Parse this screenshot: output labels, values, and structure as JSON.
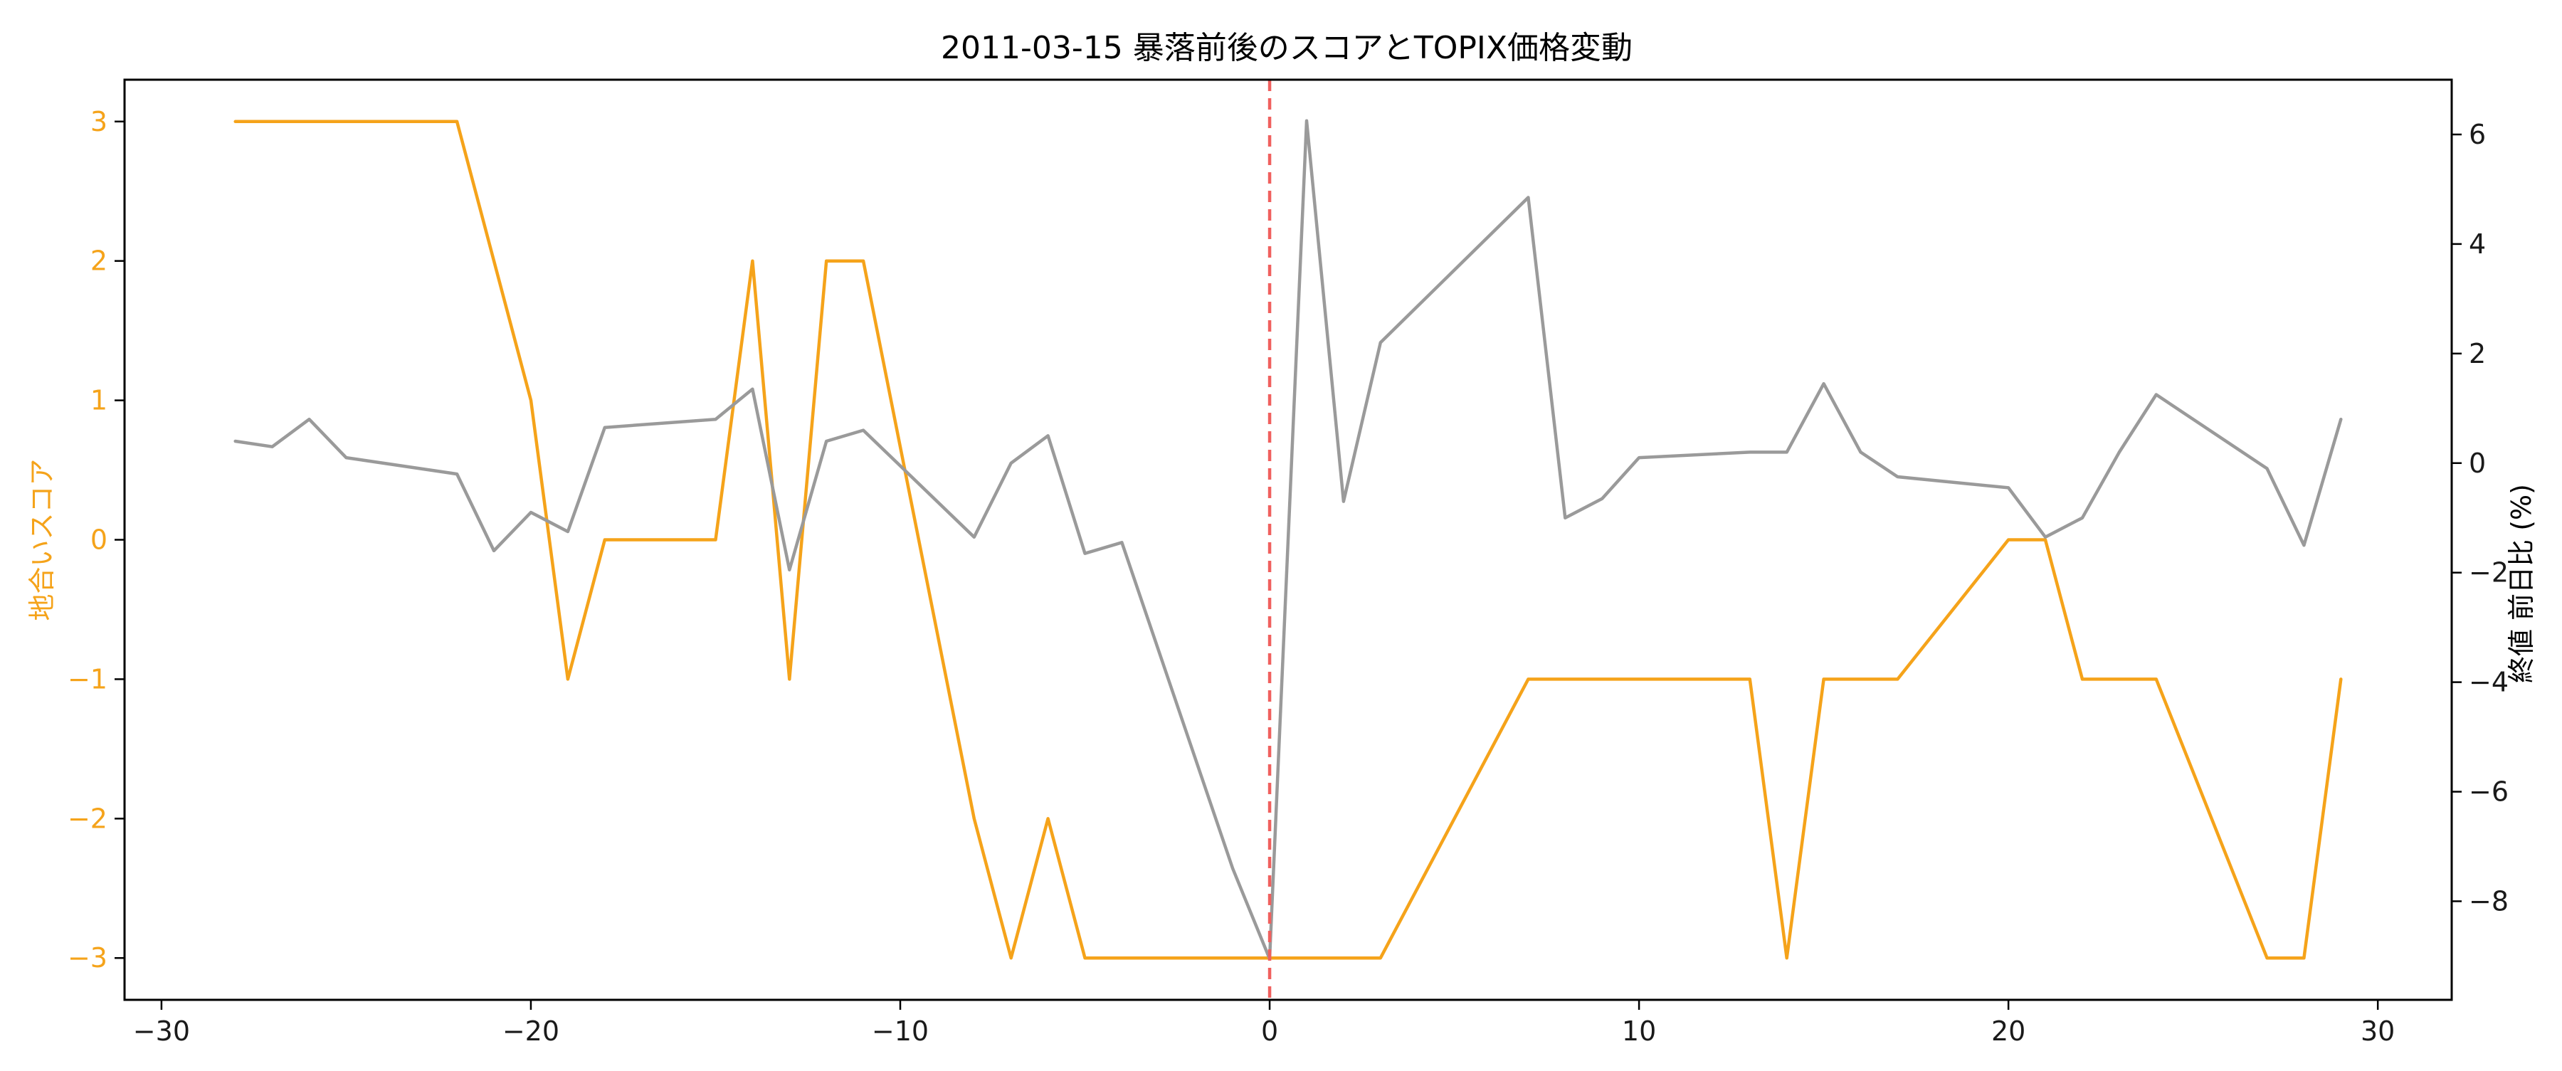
{
  "chart_data": {
    "type": "line",
    "title": "2011-03-15 暴落前後のスコアとTOPIX価格変動",
    "xlabel": "",
    "ylabel_left": "地合いスコア",
    "ylabel_right": "終値 前日比 (%)",
    "xlim": [
      -31,
      32
    ],
    "ylim_left": [
      -3.3,
      3.3
    ],
    "ylim_right": [
      -9.8,
      7.0
    ],
    "xticks": [
      -30,
      -20,
      -10,
      0,
      10,
      20,
      30
    ],
    "xtick_labels": [
      "−30",
      "−20",
      "−10",
      "0",
      "10",
      "20",
      "30"
    ],
    "yticks_left": [
      3,
      2,
      1,
      0,
      -1,
      -2,
      -3
    ],
    "ytick_labels_left": [
      "3",
      "2",
      "1",
      "0",
      "−1",
      "−2",
      "−3"
    ],
    "yticks_right": [
      6,
      4,
      2,
      0,
      -2,
      -4,
      -6,
      -8
    ],
    "ytick_labels_right": [
      "6",
      "4",
      "2",
      "0",
      "−2",
      "−4",
      "−6",
      "−8"
    ],
    "grid": false,
    "vline": {
      "x": 0,
      "color": "#f0605e",
      "style": "dashed"
    },
    "series": [
      {
        "axis": "left",
        "color": "#f5a31a",
        "x": [
          -28,
          -22,
          -20,
          -19,
          -18,
          -15,
          -14,
          -13,
          -12,
          -11,
          -8,
          -7,
          -6,
          -5,
          0,
          3,
          7,
          13,
          14,
          15,
          17,
          20,
          21,
          22,
          24,
          27,
          28,
          29
        ],
        "values": [
          3,
          3,
          1,
          -1,
          0,
          0,
          2,
          -1,
          2,
          2,
          -2,
          -3,
          -2,
          -3,
          -3,
          -3,
          -1,
          -1,
          -3,
          -1,
          -1,
          0,
          0,
          -1,
          -1,
          -3,
          -3,
          -1
        ]
      },
      {
        "axis": "right",
        "color": "#9a9a9a",
        "x": [
          -28,
          -27,
          -26,
          -25,
          -22,
          -21,
          -20,
          -19,
          -18,
          -15,
          -14,
          -13,
          -12,
          -11,
          -8,
          -7,
          -6,
          -5,
          -4,
          -1,
          0,
          1,
          2,
          3,
          7,
          8,
          9,
          10,
          13,
          14,
          15,
          16,
          17,
          20,
          21,
          22,
          23,
          24,
          27,
          28,
          29
        ],
        "values": [
          0.4,
          0.3,
          0.8,
          0.1,
          -0.2,
          -1.6,
          -0.9,
          -1.25,
          0.65,
          0.8,
          1.35,
          -1.95,
          0.4,
          0.6,
          -1.35,
          0.0,
          0.5,
          -1.65,
          -1.45,
          -7.4,
          -9.05,
          6.25,
          -0.7,
          2.2,
          4.85,
          -1.0,
          -0.65,
          0.1,
          0.2,
          0.2,
          1.45,
          0.2,
          -0.25,
          -0.45,
          -1.35,
          -1.0,
          0.2,
          1.25,
          -0.1,
          -1.5,
          0.8
        ]
      }
    ]
  }
}
